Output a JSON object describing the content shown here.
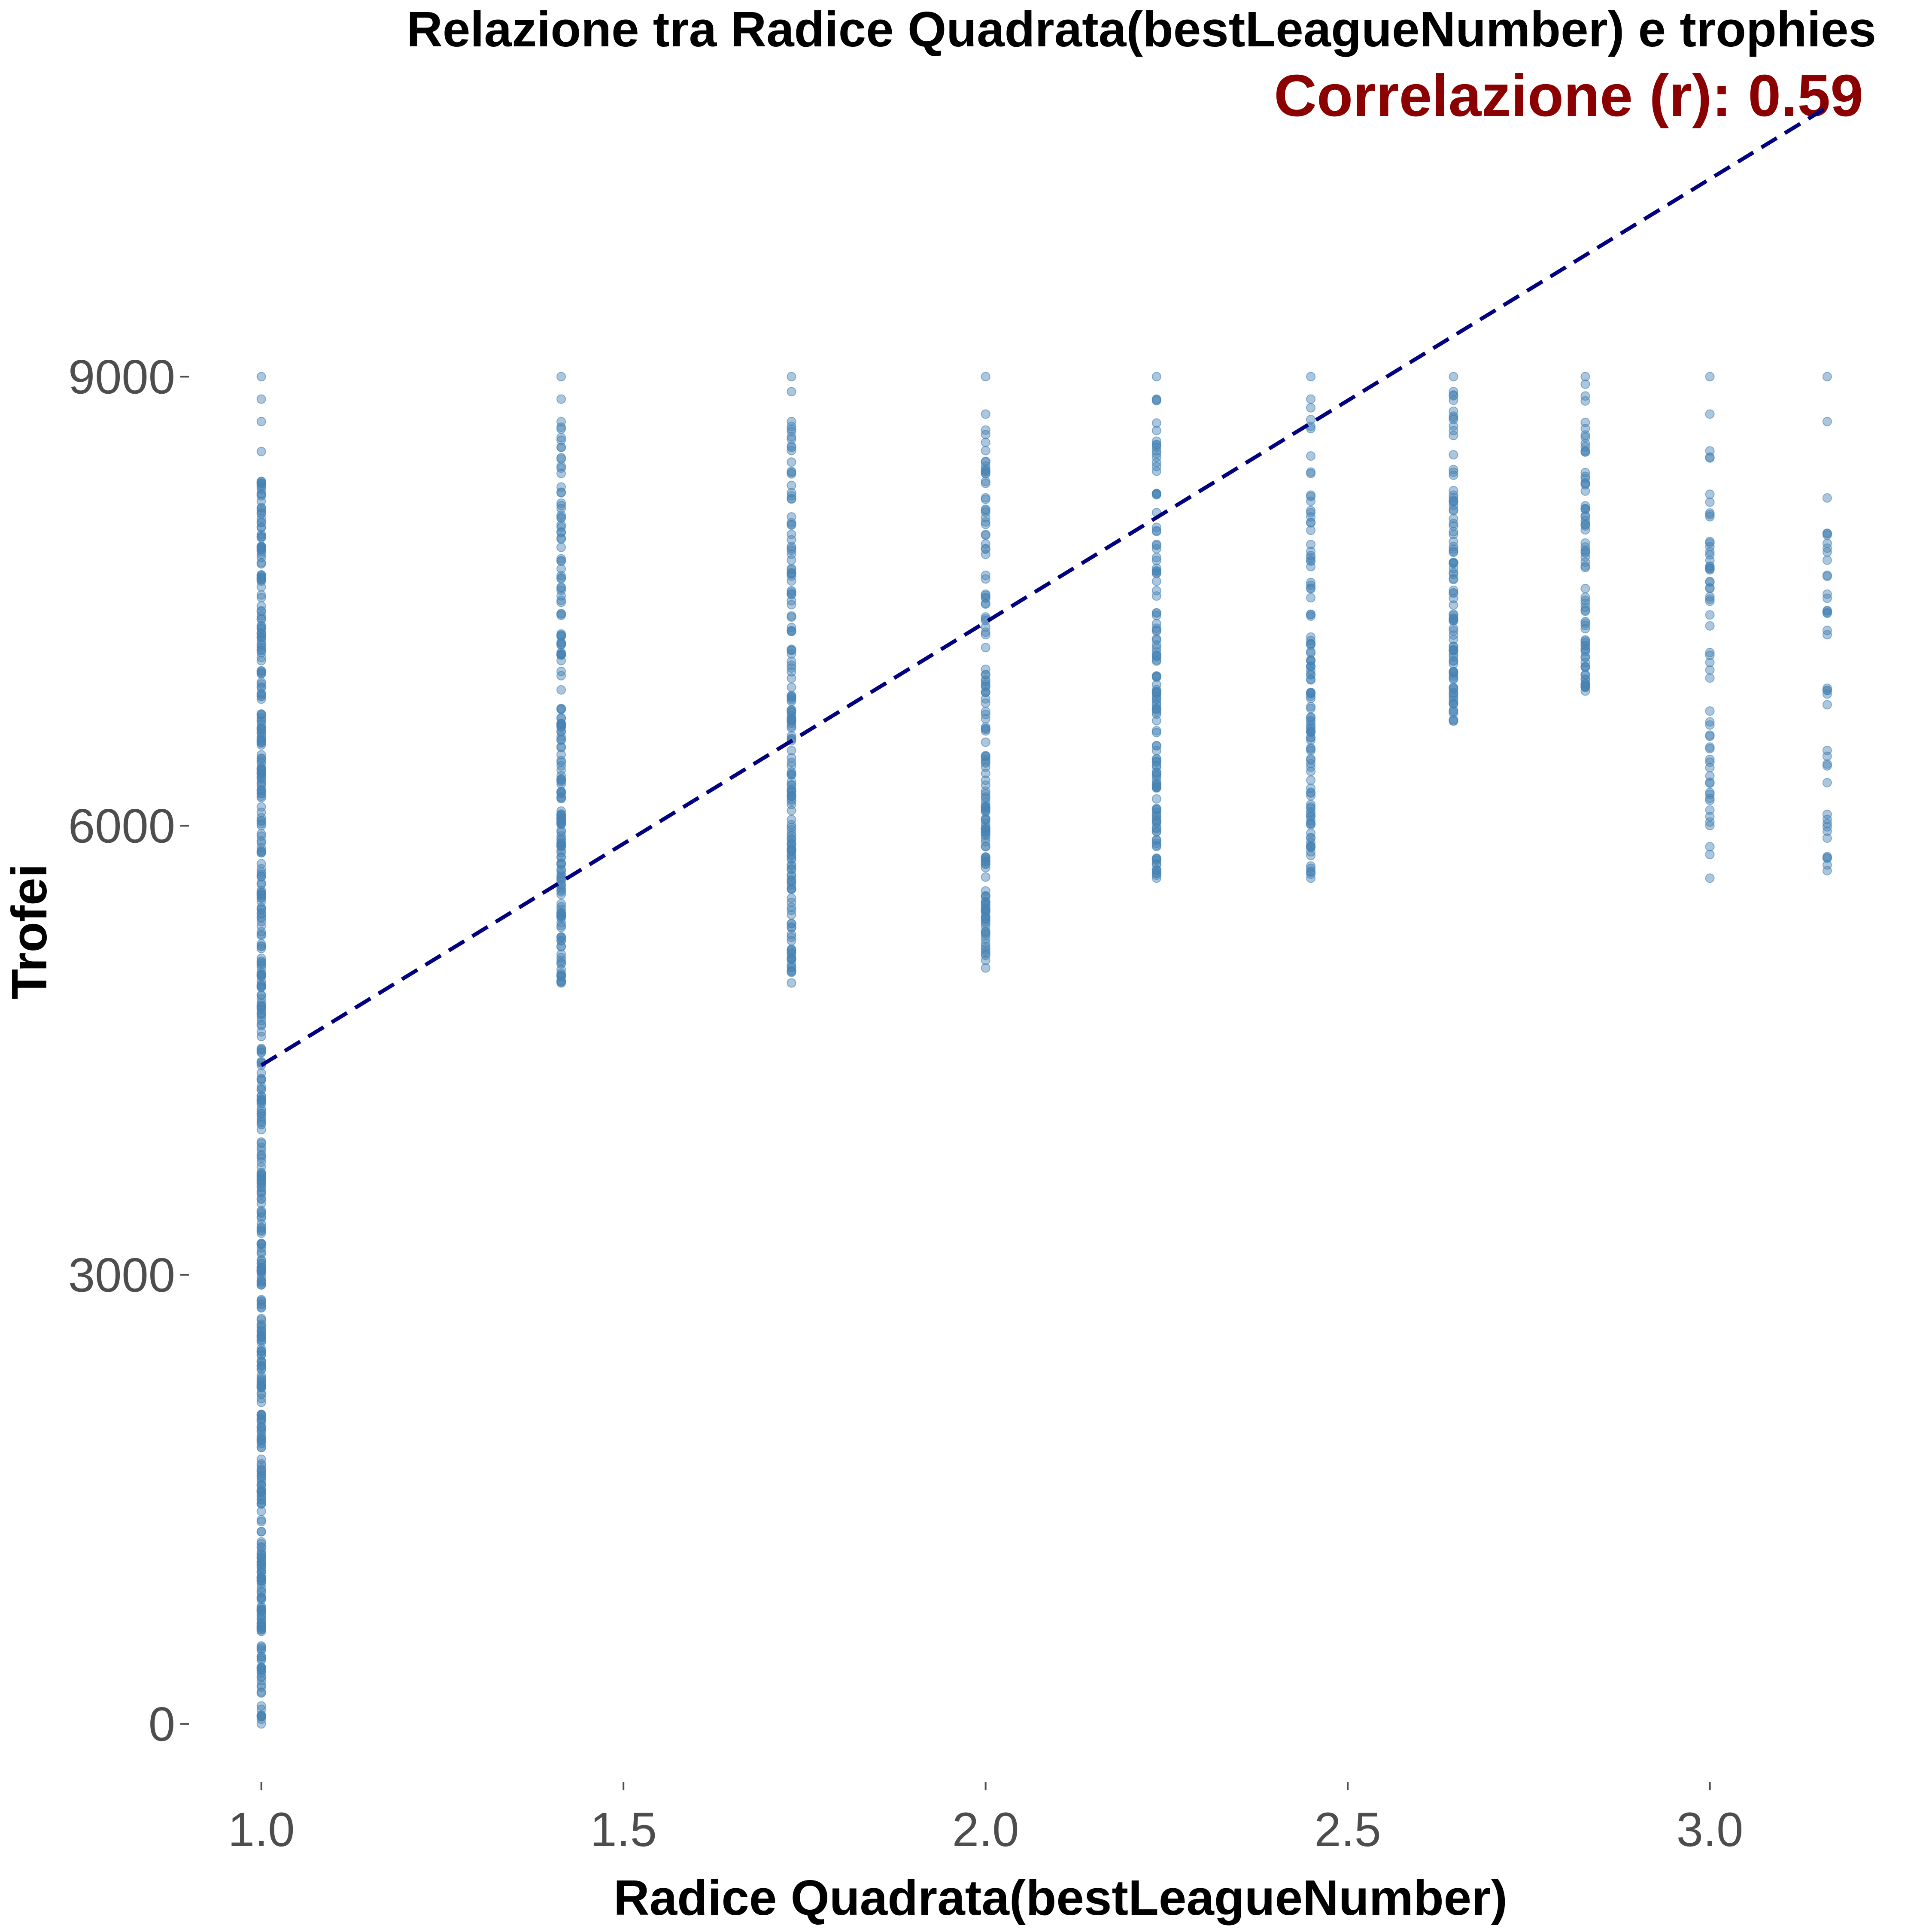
{
  "chart_data": {
    "type": "scatter",
    "title": "Relazione tra Radice Quadrata(bestLeagueNumber) e trophies",
    "subtitle": "Correlazione (r): 0.59",
    "xlabel": "Radice Quadrata(bestLeagueNumber)",
    "ylabel": "Trofei",
    "xlim": [
      0.9,
      3.2
    ],
    "ylim": [
      -300,
      11000
    ],
    "x_ticks": [
      1.0,
      1.5,
      2.0,
      2.5,
      3.0
    ],
    "x_tick_labels": [
      "1.0",
      "1.5",
      "2.0",
      "2.5",
      "3.0"
    ],
    "y_ticks": [
      0,
      3000,
      6000,
      9000
    ],
    "y_tick_labels": [
      "0",
      "3000",
      "6000",
      "9000"
    ],
    "grid": false,
    "point_color": "#4682b4",
    "point_opacity": 0.45,
    "trend_line_color": "#000080",
    "subtitle_color": "#8b0000",
    "trend_line": {
      "style": "dashed",
      "x": [
        1.0,
        3.162
      ],
      "y": [
        4400,
        10800
      ]
    },
    "columns": [
      {
        "x": 1.0,
        "y_min": 0,
        "y_max": 8300,
        "sparse_above": [
          8500,
          8700,
          8850,
          9000
        ]
      },
      {
        "x": 1.414,
        "y_min": 4950,
        "y_max": 8850,
        "sparse_above": [
          9000
        ]
      },
      {
        "x": 1.732,
        "y_min": 4950,
        "y_max": 8700,
        "sparse_above": [
          8900,
          9000
        ]
      },
      {
        "x": 2.0,
        "y_min": 5050,
        "y_max": 8750,
        "sparse_above": [
          9000
        ]
      },
      {
        "x": 2.236,
        "y_min": 5650,
        "y_max": 8850,
        "sparse_above": [
          9000
        ]
      },
      {
        "x": 2.449,
        "y_min": 5650,
        "y_max": 8850,
        "sparse_above": [
          9000
        ]
      },
      {
        "x": 2.646,
        "y_min": 6700,
        "y_max": 8900,
        "sparse_above": [
          9000
        ]
      },
      {
        "x": 2.828,
        "y_min": 6900,
        "y_max": 8950,
        "sparse_above": [
          9000
        ]
      },
      {
        "x": 3.0,
        "y_min": 5650,
        "y_max": 8750,
        "sparse_above": [
          9000
        ]
      },
      {
        "x": 3.162,
        "y_min": 5700,
        "y_max": 8700,
        "sparse_above": [
          9000
        ]
      }
    ]
  }
}
